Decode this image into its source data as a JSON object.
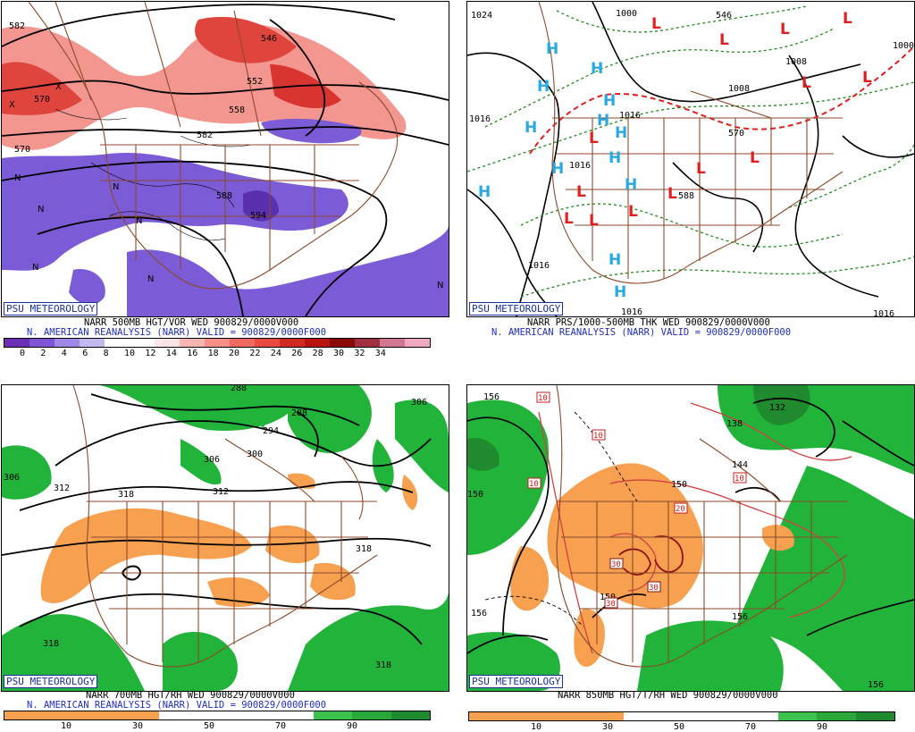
{
  "badge": "PSU METEOROLOGY",
  "colors": {
    "state_lines": "#8b4a2b",
    "red_fill": "#e8554e",
    "purple_fill": "#7b5bd6",
    "green_fill": "#22b43a",
    "orange_fill": "#f6a050",
    "caption_blue": "#1f2fb8",
    "high_symbol": "#2aa8e0",
    "low_symbol": "#e02020"
  },
  "panels": [
    {
      "id": "p1",
      "caption1": "NARR 500MB HGT/VOR WED 900829/0000V000",
      "caption2": "N. AMERICAN REANALYSIS (NARR) VALID = 900829/0000F000",
      "contour_labels": [
        "582",
        "546",
        "552",
        "558",
        "570",
        "570",
        "582",
        "588",
        "594"
      ],
      "markers": [
        "X",
        "X",
        "N",
        "N",
        "N",
        "N",
        "N",
        "N",
        "N"
      ],
      "colorbar": {
        "colors": [
          "#6b2fb5",
          "#7f55d8",
          "#9f88e8",
          "#c4b8f1",
          "#ffffff",
          "#ffffff",
          "#fde5e5",
          "#f9b5b0",
          "#f58f87",
          "#ef6a60",
          "#e84a40",
          "#d12a22",
          "#b81510",
          "#8a0a08",
          "#a03040",
          "#d07890",
          "#f0a8c0"
        ],
        "ticks": [
          "0",
          "2",
          "4",
          "6",
          "8",
          "10",
          "12",
          "14",
          "16",
          "18",
          "20",
          "22",
          "24",
          "26",
          "28",
          "30",
          "32",
          "34"
        ]
      }
    },
    {
      "id": "p2",
      "caption1": "NARR PRS/1000-500MB THK WED 900829/0000V000",
      "caption2": "N. AMERICAN REANALYSIS (NARR) VALID = 900829/0000F000",
      "contour_labels": [
        "1024",
        "1016",
        "1016",
        "1016",
        "1016",
        "1008",
        "1008",
        "1000",
        "1000",
        "570",
        "588",
        "546",
        "1016",
        "1016"
      ],
      "highs": [
        "H",
        "H",
        "H",
        "H",
        "H",
        "H",
        "H",
        "H",
        "H",
        "H",
        "H",
        "H",
        "H"
      ],
      "lows": [
        "L",
        "L",
        "L",
        "L",
        "L",
        "L",
        "L",
        "L",
        "L",
        "L",
        "L",
        "L",
        "L",
        "L"
      ]
    },
    {
      "id": "p3",
      "caption1": "NARR 700MB HGT/RH WED 900829/0000V000",
      "caption2": "N. AMERICAN REANALYSIS (NARR) VALID = 900829/0000F000",
      "contour_labels": [
        "288",
        "288",
        "294",
        "300",
        "306",
        "306",
        "306",
        "312",
        "312",
        "318",
        "318",
        "318",
        "318"
      ],
      "colorbar": {
        "colors": [
          "#f6a050",
          "#f6a050",
          "#f6a050",
          "#f6a050",
          "#ffffff",
          "#ffffff",
          "#ffffff",
          "#ffffff",
          "#3dc24f",
          "#2aa83a",
          "#1f8a2e"
        ],
        "ticks": [
          "10",
          "30",
          "50",
          "70",
          "90"
        ]
      }
    },
    {
      "id": "p4",
      "caption1": "NARR 850MB HGT/T/RH WED 900829/0000V000",
      "contour_labels": [
        "156",
        "150",
        "138",
        "132",
        "144",
        "150",
        "156",
        "150",
        "156",
        "156"
      ],
      "temp_labels": [
        "10",
        "10",
        "10",
        "10",
        "20",
        "30",
        "30",
        "30"
      ],
      "colorbar": {
        "colors": [
          "#f6a050",
          "#f6a050",
          "#f6a050",
          "#f6a050",
          "#ffffff",
          "#ffffff",
          "#ffffff",
          "#ffffff",
          "#3dc24f",
          "#2aa83a",
          "#1f8a2e"
        ],
        "ticks": [
          "10",
          "30",
          "50",
          "70",
          "90"
        ]
      }
    }
  ]
}
